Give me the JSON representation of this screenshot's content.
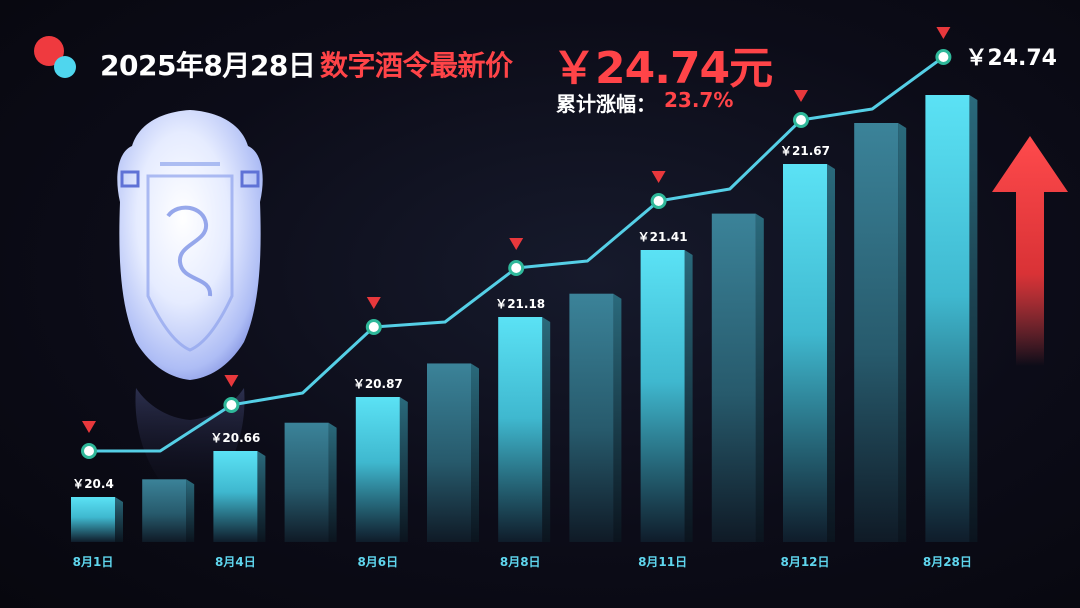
{
  "header": {
    "date": "2025年8月28日",
    "name": "数字酒令最新价",
    "price": "￥24.74元",
    "cumulative_label": "累计涨幅：",
    "cumulative_value": "23.7%"
  },
  "colors": {
    "accent_red": "#ff4448",
    "accent_cyan": "#4fd6ee",
    "background": "#0c0c18"
  },
  "icons": {
    "logo": "two-dots-logo-icon",
    "product": "jade-pendant-icon",
    "trend": "up-arrow-icon"
  },
  "chart_data": {
    "type": "bar",
    "categories": [
      "8月1日",
      "",
      "8月4日",
      "",
      "8月6日",
      "",
      "8月8日",
      "",
      "8月11日",
      "",
      "8月12日",
      "",
      "8月28日"
    ],
    "values": [
      20.4,
      20.5,
      20.66,
      20.77,
      20.87,
      21.0,
      21.18,
      21.26,
      21.41,
      21.52,
      21.67,
      21.85,
      24.74
    ],
    "line_values": [
      20.4,
      20.4,
      20.66,
      20.76,
      21.0,
      21.04,
      21.27,
      21.31,
      21.48,
      21.56,
      21.8,
      21.85,
      22.1
    ],
    "value_labels": [
      "￥20.4",
      "",
      "￥20.66",
      "",
      "￥20.87",
      "",
      "￥21.18",
      "",
      "￥21.41",
      "",
      "￥21.67",
      "",
      "￥24.74"
    ],
    "highlight_points": [
      0,
      2,
      4,
      6,
      8,
      10,
      12
    ],
    "title": "",
    "xlabel": "",
    "ylabel": "",
    "grid": false,
    "legend": "none"
  }
}
